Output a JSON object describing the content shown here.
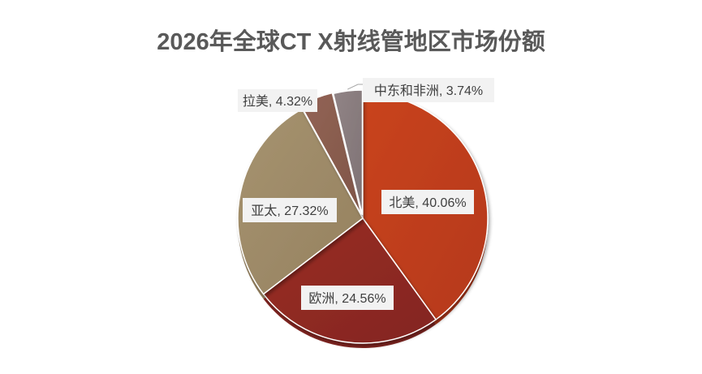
{
  "chart_data": {
    "type": "pie",
    "title": "2026年全球CT X射线管地区市场份额",
    "slices": [
      {
        "name": "北美",
        "value": 40.06,
        "label": "北美, 40.06%",
        "color": "#c9441a",
        "color_dark": "#b5381a"
      },
      {
        "name": "欧洲",
        "value": 24.56,
        "label": "欧洲, 24.56%",
        "color": "#9a2e22",
        "color_dark": "#832521"
      },
      {
        "name": "亚太",
        "value": 27.32,
        "label": "亚太, 27.32%",
        "color": "#a69370",
        "color_dark": "#95815f"
      },
      {
        "name": "拉美",
        "value": 4.32,
        "label": "拉美, 4.32%",
        "color": "#936455",
        "color_dark": "#7f5548"
      },
      {
        "name": "中东和非洲",
        "value": 3.74,
        "label": "中东和非洲, 3.74%",
        "color": "#918486",
        "color_dark": "#7e7274"
      }
    ],
    "legend": "none",
    "data_labels": "category, percentage",
    "style": "3d-shadowed-pie"
  }
}
